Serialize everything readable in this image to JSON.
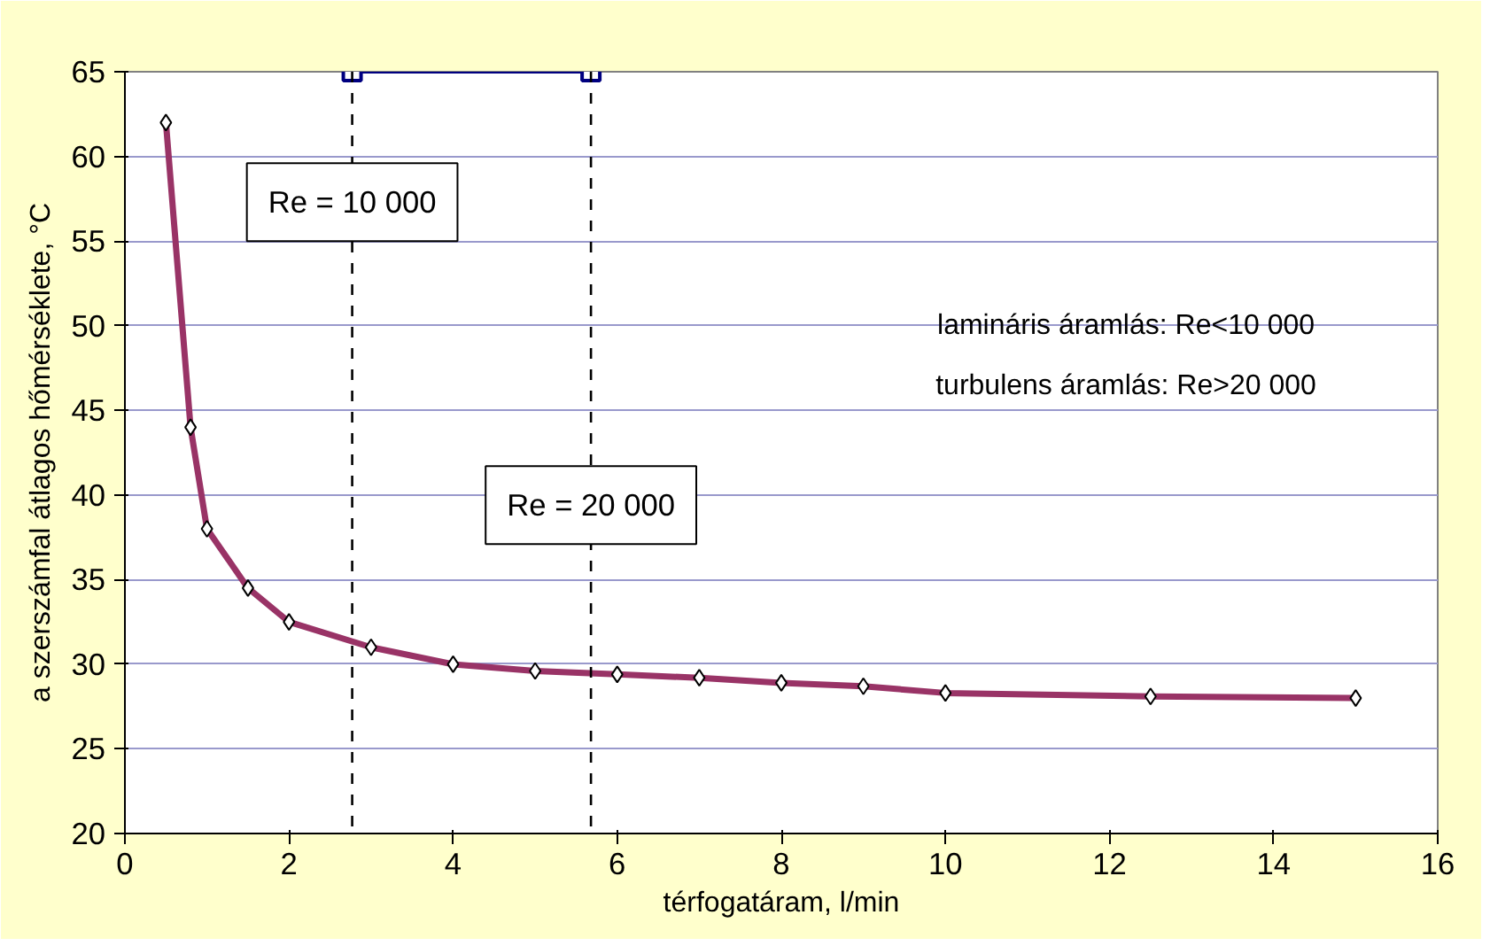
{
  "chart_data": {
    "type": "line",
    "xlabel": "térfogatáram, l/min",
    "ylabel": "a szerszámfal átlagos hőmérséklete, °C",
    "xlim": [
      0,
      16
    ],
    "ylim": [
      20,
      65
    ],
    "xticks": [
      0,
      2,
      4,
      6,
      8,
      10,
      12,
      14,
      16
    ],
    "yticks": [
      20,
      25,
      30,
      35,
      40,
      45,
      50,
      55,
      60,
      65
    ],
    "grid": "y",
    "series": [
      {
        "color": "#993366",
        "marker": "diamond",
        "x": [
          0.5,
          0.8,
          1,
          1.5,
          2,
          3,
          4,
          5,
          6,
          7,
          8,
          9,
          10,
          12.5,
          15
        ],
        "values": [
          62,
          44,
          38,
          34.5,
          32.5,
          31,
          30,
          29.6,
          29.4,
          29.2,
          28.9,
          28.7,
          28.3,
          28.1,
          28
        ]
      },
      {
        "color": "#000080",
        "marker": "square",
        "x": [
          2.77,
          5.68
        ],
        "values": [
          65,
          65
        ]
      }
    ],
    "ref_lines": [
      {
        "axis": "x",
        "value": 2.77,
        "line_style": "dashed",
        "color": "#000000"
      },
      {
        "axis": "x",
        "value": 5.68,
        "line_style": "dashed",
        "color": "#000000"
      }
    ],
    "annotations": [
      {
        "text": "Re = 10 000",
        "x": 2.77,
        "y": 57.3
      },
      {
        "text": "Re = 20 000",
        "x": 5.68,
        "y": 39.4
      },
      "lamináris áramlás: Re<10 000",
      "turbulens áramlás: Re>20 000"
    ]
  }
}
